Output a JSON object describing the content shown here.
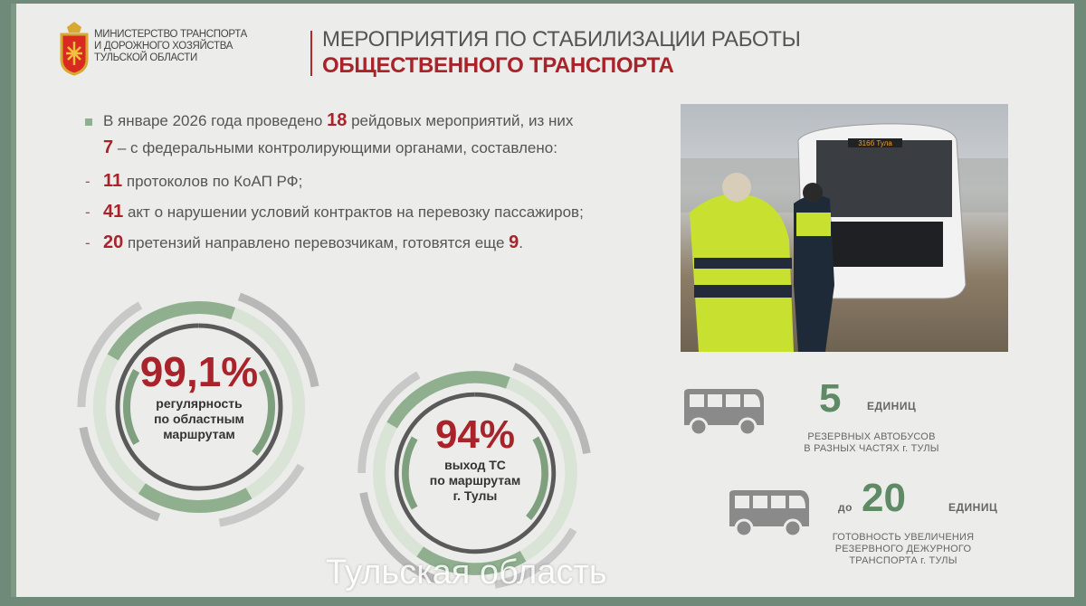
{
  "header": {
    "ministry_lines": [
      "МИНИСТЕРСТВО ТРАНСПОРТА",
      "И ДОРОЖНОГО ХОЗЯЙСТВА",
      "ТУЛЬСКОЙ ОБЛАСТИ"
    ],
    "title_line1": "МЕРОПРИЯТИЯ ПО СТАБИЛИЗАЦИИ РАБОТЫ",
    "title_line2": "ОБЩЕСТВЕННОГО ТРАНСПОРТА"
  },
  "bullets": [
    {
      "pre": "В январе 2026 года проведено ",
      "num": "18",
      "post": " рейдовых мероприятий, из них"
    },
    {
      "pre": "",
      "num": "7",
      "post": " – с федеральными контролирующими органами, составлено:"
    },
    {
      "pre": "",
      "num": "11",
      "post": " протоколов по КоАП РФ;"
    },
    {
      "pre": "",
      "num": "41",
      "post": " акт о нарушении условий контрактов на перевозку пассажиров;"
    },
    {
      "pre": "",
      "num": "20",
      "post": " претензий направлено перевозчикам, готовятся еще ",
      "num2": "9",
      "tail": "."
    }
  ],
  "photo": {
    "route_sign": "316б Тула"
  },
  "gauges": [
    {
      "value": "99,1%",
      "label": [
        "регулярность",
        "по областным",
        "маршрутам"
      ]
    },
    {
      "value": "94%",
      "label": [
        "выход ТС",
        "по маршрутам",
        "г. Тулы"
      ]
    }
  ],
  "reserve": [
    {
      "prefix": "",
      "value": "5",
      "unit": "ЕДИНИЦ",
      "caption": [
        "РЕЗЕРВНЫХ АВТОБУСОВ",
        "В РАЗНЫХ ЧАСТЯХ г. ТУЛЫ"
      ]
    },
    {
      "prefix": "до",
      "value": "20",
      "unit": "ЕДИНИЦ",
      "caption": [
        "ГОТОВНОСТЬ УВЕЛИЧЕНИЯ",
        "РЕЗЕРВНОГО ДЕЖУРНОГО",
        "ТРАНСПОРТА г. ТУЛЫ"
      ]
    }
  ],
  "subtitle": "Тульская область",
  "colors": {
    "accent_red": "#a8232a",
    "accent_green": "#5f8a66",
    "background": "#ececea"
  }
}
